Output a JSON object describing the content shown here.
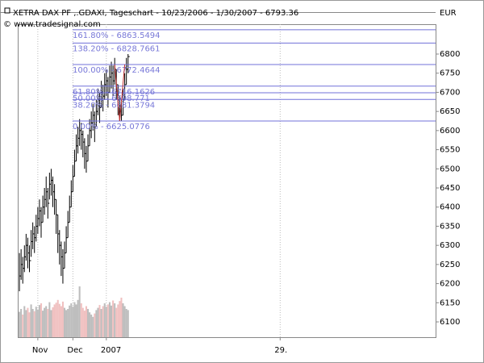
{
  "chart_data": {
    "type": "ohlc",
    "title": "XETRA DAX PF ,.GDAXI, Tageschart - 10/23/2006 - 1/30/2007 - 6793.36",
    "subtitle": "© www.tradesignal.com",
    "currency": "EUR",
    "x": [
      1,
      2,
      3,
      4,
      5,
      6,
      7,
      8,
      9,
      10,
      11,
      12,
      13,
      14,
      15,
      16,
      17,
      18,
      19,
      20,
      21,
      22,
      23,
      24,
      25,
      26,
      27,
      28,
      29,
      30,
      31,
      32,
      33,
      34,
      35,
      36,
      37,
      38,
      39,
      40,
      41,
      42,
      43,
      44,
      45,
      46,
      47,
      48,
      49,
      50,
      51,
      52,
      53,
      54,
      55,
      56,
      57,
      58,
      59,
      60,
      61,
      62,
      63,
      64,
      65,
      66
    ],
    "high": [
      6280,
      6290,
      6270,
      6300,
      6330,
      6320,
      6300,
      6340,
      6360,
      6350,
      6380,
      6400,
      6420,
      6400,
      6430,
      6450,
      6480,
      6450,
      6490,
      6500,
      6480,
      6460,
      6420,
      6380,
      6340,
      6310,
      6290,
      6310,
      6350,
      6390,
      6430,
      6470,
      6510,
      6550,
      6590,
      6610,
      6630,
      6620,
      6600,
      6580,
      6560,
      6590,
      6630,
      6650,
      6670,
      6650,
      6680,
      6710,
      6700,
      6730,
      6720,
      6750,
      6760,
      6740,
      6770,
      6780,
      6770,
      6790,
      6760,
      6720,
      6690,
      6680,
      6710,
      6750,
      6790,
      6800
    ],
    "low": [
      6180,
      6210,
      6200,
      6230,
      6260,
      6240,
      6230,
      6270,
      6290,
      6280,
      6310,
      6330,
      6350,
      6320,
      6360,
      6380,
      6400,
      6370,
      6420,
      6430,
      6400,
      6380,
      6330,
      6280,
      6250,
      6220,
      6200,
      6240,
      6280,
      6320,
      6360,
      6400,
      6440,
      6480,
      6520,
      6540,
      6560,
      6550,
      6530,
      6500,
      6490,
      6520,
      6560,
      6580,
      6600,
      6570,
      6610,
      6640,
      6620,
      6660,
      6650,
      6680,
      6690,
      6660,
      6700,
      6710,
      6690,
      6720,
      6680,
      6640,
      6625.08,
      6626,
      6640,
      6680,
      6720,
      6750
    ],
    "close": [
      6220,
      6250,
      6240,
      6270,
      6300,
      6280,
      6260,
      6310,
      6330,
      6320,
      6350,
      6370,
      6390,
      6360,
      6400,
      6420,
      6440,
      6410,
      6460,
      6470,
      6440,
      6420,
      6380,
      6330,
      6300,
      6270,
      6240,
      6280,
      6320,
      6360,
      6400,
      6440,
      6480,
      6520,
      6560,
      6580,
      6600,
      6590,
      6570,
      6540,
      6520,
      6560,
      6600,
      6620,
      6640,
      6610,
      6650,
      6680,
      6660,
      6700,
      6690,
      6720,
      6730,
      6700,
      6740,
      6750,
      6730,
      6760,
      6720,
      6680,
      6650,
      6640,
      6680,
      6720,
      6760,
      6793.36
    ],
    "volume": [
      45,
      50,
      40,
      55,
      48,
      52,
      44,
      58,
      50,
      46,
      54,
      49,
      57,
      60,
      47,
      52,
      55,
      50,
      62,
      48,
      53,
      58,
      61,
      66,
      59,
      55,
      63,
      52,
      48,
      50,
      56,
      60,
      54,
      62,
      58,
      66,
      90,
      60,
      52,
      47,
      55,
      50,
      44,
      40,
      36,
      42,
      48,
      52,
      57,
      50,
      55,
      60,
      54,
      58,
      62,
      56,
      65,
      60,
      52,
      58,
      64,
      70,
      60,
      55,
      50,
      48
    ],
    "up_color": "#bdbdbd",
    "down_color": "#f0c0c0",
    "bar_color": "#000000",
    "vlim": [
      0,
      100
    ],
    "fib_color": "#7070d8",
    "fib_levels": [
      {
        "value": 6863.5494,
        "label": "161.80% - 6863.5494"
      },
      {
        "value": 6828.7661,
        "label": "138.20% - 6828.7661"
      },
      {
        "value": 6772.4644,
        "label": "100.00% - 6772.4644"
      },
      {
        "value": 6716.1626,
        "label": "61.80% - 6716.1626"
      },
      {
        "value": 6698.771,
        "label": "50.00% - 6698.771"
      },
      {
        "value": 6681.3794,
        "label": "38.20% - 6681.3794"
      },
      {
        "value": 6625.0776,
        "label": "0.00% - 6625.0776"
      }
    ],
    "xlim": [
      0,
      250
    ],
    "xticks": [
      {
        "value": 12,
        "label": "Nov"
      },
      {
        "value": 33,
        "label": "Dec"
      },
      {
        "value": 53,
        "label": "2007"
      },
      {
        "value": 157,
        "label": "29."
      }
    ],
    "ylim": [
      6060,
      6878
    ],
    "yticks": [
      6100,
      6150,
      6200,
      6250,
      6300,
      6350,
      6400,
      6450,
      6500,
      6550,
      6600,
      6650,
      6700,
      6750,
      6800
    ],
    "grid": true
  }
}
